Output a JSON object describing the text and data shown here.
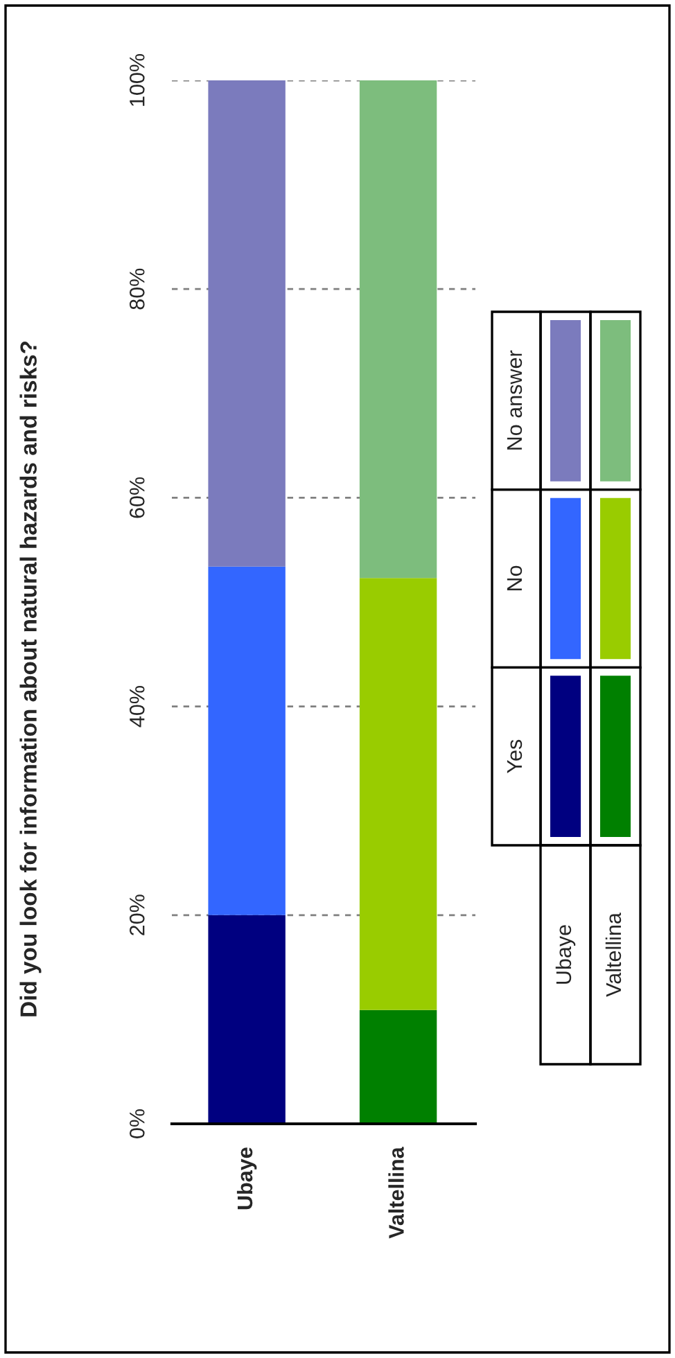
{
  "chart_data": {
    "type": "bar",
    "title": "Did you look for information about natural hazards and risks?",
    "categories": [
      "Ubaye",
      "Valtellina"
    ],
    "stacked": true,
    "series": [
      {
        "name": "Yes",
        "colors": [
          "#000080",
          "#008000"
        ],
        "values": [
          20,
          10.9
        ]
      },
      {
        "name": "No",
        "colors": [
          "#3366ff",
          "#99cc00"
        ],
        "values": [
          33.4,
          41.4
        ]
      },
      {
        "name": "No answer",
        "colors": [
          "#7b7bbd",
          "#7dbd7d"
        ],
        "values": [
          46.6,
          47.7
        ]
      }
    ],
    "ylim": [
      0,
      100
    ],
    "yticks": [
      {
        "value": 0,
        "label": "0%"
      },
      {
        "value": 20,
        "label": "20%"
      },
      {
        "value": 40,
        "label": "40%"
      },
      {
        "value": 60,
        "label": "60%"
      },
      {
        "value": 80,
        "label": "80%"
      },
      {
        "value": 100,
        "label": "100%"
      }
    ],
    "grid": "y",
    "legend": "right"
  }
}
